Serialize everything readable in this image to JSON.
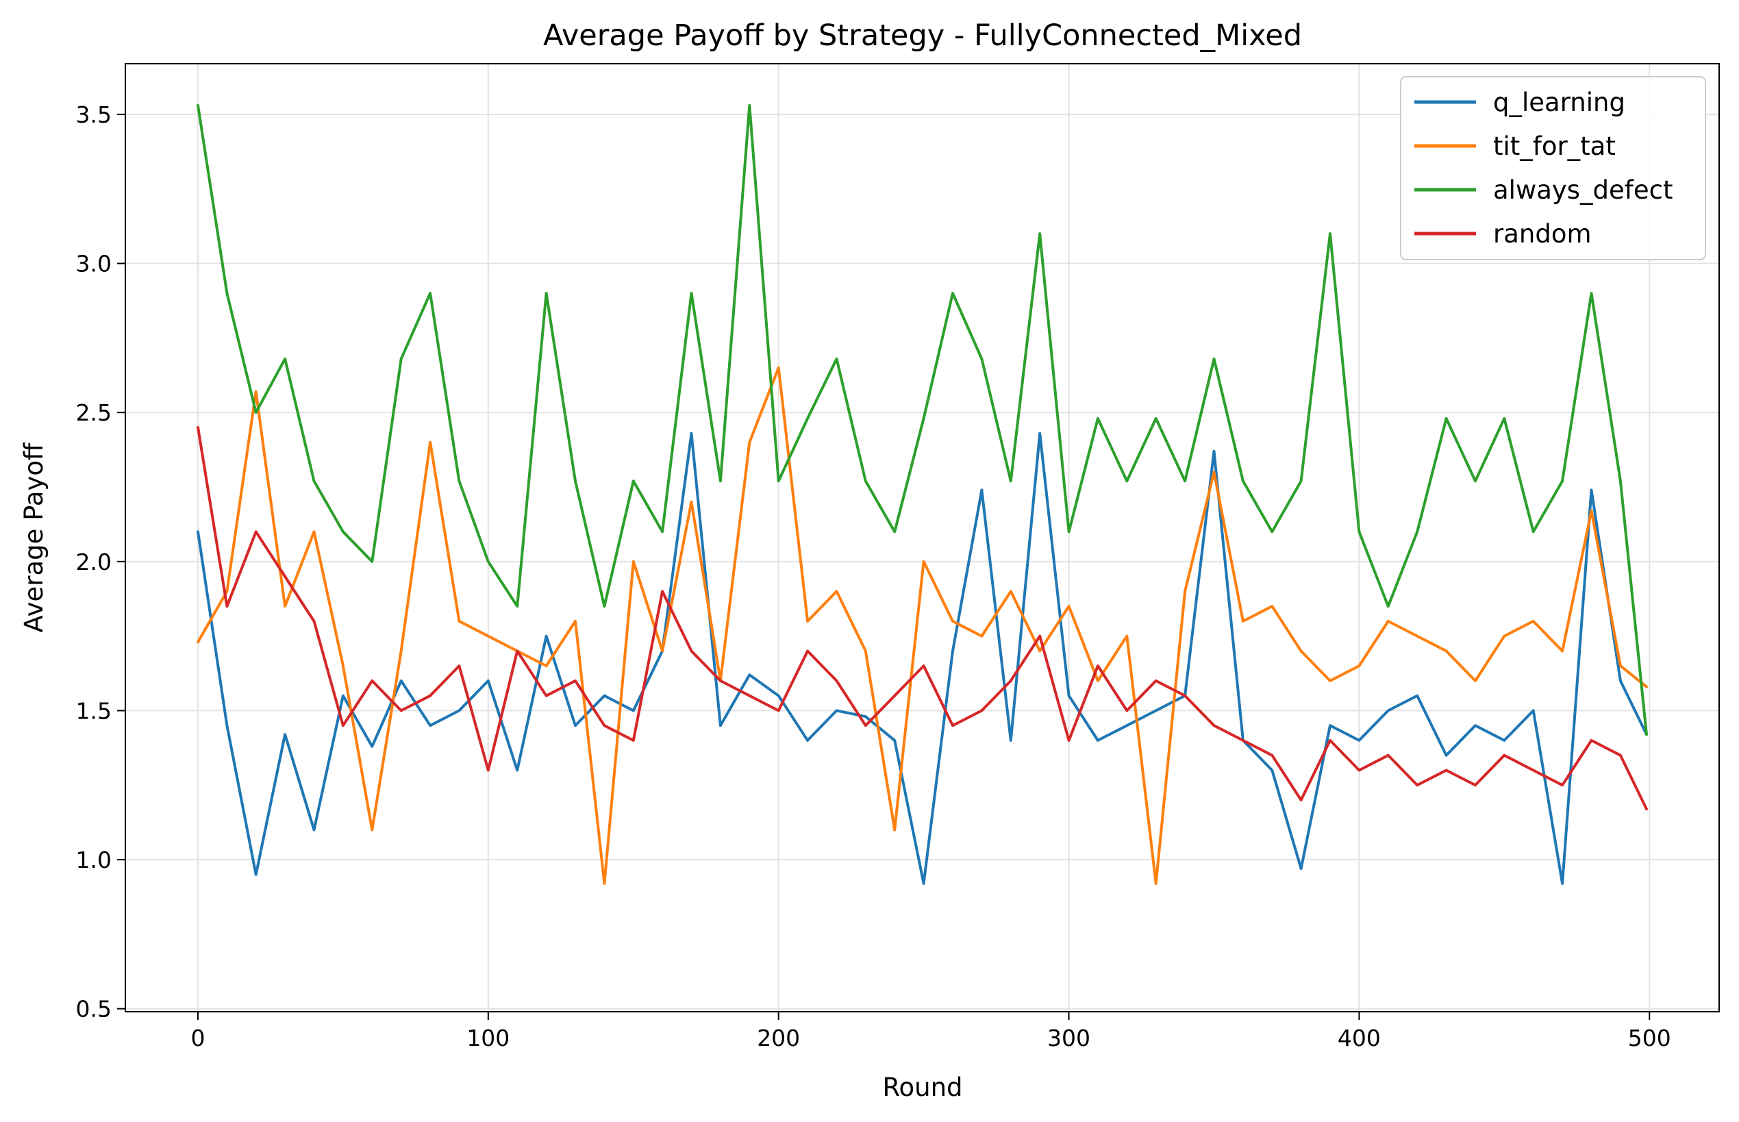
{
  "chart_data": {
    "type": "line",
    "title": "Average Payoff by Strategy - FullyConnected_Mixed",
    "xlabel": "Round",
    "ylabel": "Average Payoff",
    "xlim": [
      -25,
      524
    ],
    "ylim": [
      0.49,
      3.67
    ],
    "x_ticks": [
      0,
      100,
      200,
      300,
      400,
      500
    ],
    "y_ticks": [
      0.5,
      1.0,
      1.5,
      2.0,
      2.5,
      3.0,
      3.5
    ],
    "x_tick_labels": [
      "0",
      "100",
      "200",
      "300",
      "400",
      "500"
    ],
    "y_tick_labels": [
      "0.5",
      "1.0",
      "1.5",
      "2.0",
      "2.5",
      "3.0",
      "3.5"
    ],
    "grid": true,
    "legend_position": "top-right",
    "x": [
      0,
      10,
      20,
      30,
      40,
      50,
      60,
      70,
      80,
      90,
      100,
      110,
      120,
      130,
      140,
      150,
      160,
      170,
      180,
      190,
      200,
      210,
      220,
      230,
      240,
      250,
      260,
      270,
      280,
      290,
      300,
      310,
      320,
      330,
      340,
      350,
      360,
      370,
      380,
      390,
      400,
      410,
      420,
      430,
      440,
      450,
      460,
      470,
      480,
      490,
      499
    ],
    "series": [
      {
        "name": "q_learning",
        "color": "#1f77b4",
        "values": [
          2.1,
          1.45,
          0.95,
          1.42,
          1.1,
          1.55,
          1.38,
          1.6,
          1.45,
          1.5,
          1.6,
          1.3,
          1.75,
          1.45,
          1.55,
          1.5,
          1.7,
          2.43,
          1.45,
          1.62,
          1.55,
          1.4,
          1.5,
          1.48,
          1.4,
          0.92,
          1.7,
          2.24,
          1.4,
          2.43,
          1.55,
          1.4,
          1.45,
          1.5,
          1.55,
          2.37,
          1.4,
          1.3,
          0.97,
          1.45,
          1.4,
          1.5,
          1.55,
          1.35,
          1.45,
          1.4,
          1.5,
          0.92,
          2.24,
          1.6,
          1.42
        ]
      },
      {
        "name": "tit_for_tat",
        "color": "#ff7f0e",
        "values": [
          1.73,
          1.9,
          2.57,
          1.85,
          2.1,
          1.65,
          1.1,
          1.7,
          2.4,
          1.8,
          1.75,
          1.7,
          1.65,
          1.8,
          0.92,
          2.0,
          1.7,
          2.2,
          1.6,
          2.4,
          2.65,
          1.8,
          1.9,
          1.7,
          1.1,
          2.0,
          1.8,
          1.75,
          1.9,
          1.7,
          1.85,
          1.6,
          1.75,
          0.92,
          1.9,
          2.3,
          1.8,
          1.85,
          1.7,
          1.6,
          1.65,
          1.8,
          1.75,
          1.7,
          1.6,
          1.75,
          1.8,
          1.7,
          2.17,
          1.65,
          1.58
        ]
      },
      {
        "name": "always_defect",
        "color": "#2ca02c",
        "values": [
          3.53,
          2.9,
          2.5,
          2.68,
          2.27,
          2.1,
          2.0,
          2.68,
          2.9,
          2.27,
          2.0,
          1.85,
          2.9,
          2.27,
          1.85,
          2.27,
          2.1,
          2.9,
          2.27,
          3.53,
          2.27,
          2.48,
          2.68,
          2.27,
          2.1,
          2.48,
          2.9,
          2.68,
          2.27,
          3.1,
          2.1,
          2.48,
          2.27,
          2.48,
          2.27,
          2.68,
          2.27,
          2.1,
          2.27,
          3.1,
          2.1,
          1.85,
          2.1,
          2.48,
          2.27,
          2.48,
          2.1,
          2.27,
          2.9,
          2.27,
          1.42
        ]
      },
      {
        "name": "random",
        "color": "#d62728",
        "values": [
          2.45,
          1.85,
          2.1,
          1.95,
          1.8,
          1.45,
          1.6,
          1.5,
          1.55,
          1.65,
          1.3,
          1.7,
          1.55,
          1.6,
          1.45,
          1.4,
          1.9,
          1.7,
          1.6,
          1.55,
          1.5,
          1.7,
          1.6,
          1.45,
          1.55,
          1.65,
          1.45,
          1.5,
          1.6,
          1.75,
          1.4,
          1.65,
          1.5,
          1.6,
          1.55,
          1.45,
          1.4,
          1.35,
          1.2,
          1.4,
          1.3,
          1.35,
          1.25,
          1.3,
          1.25,
          1.35,
          1.3,
          1.25,
          1.4,
          1.35,
          1.17
        ]
      }
    ]
  }
}
